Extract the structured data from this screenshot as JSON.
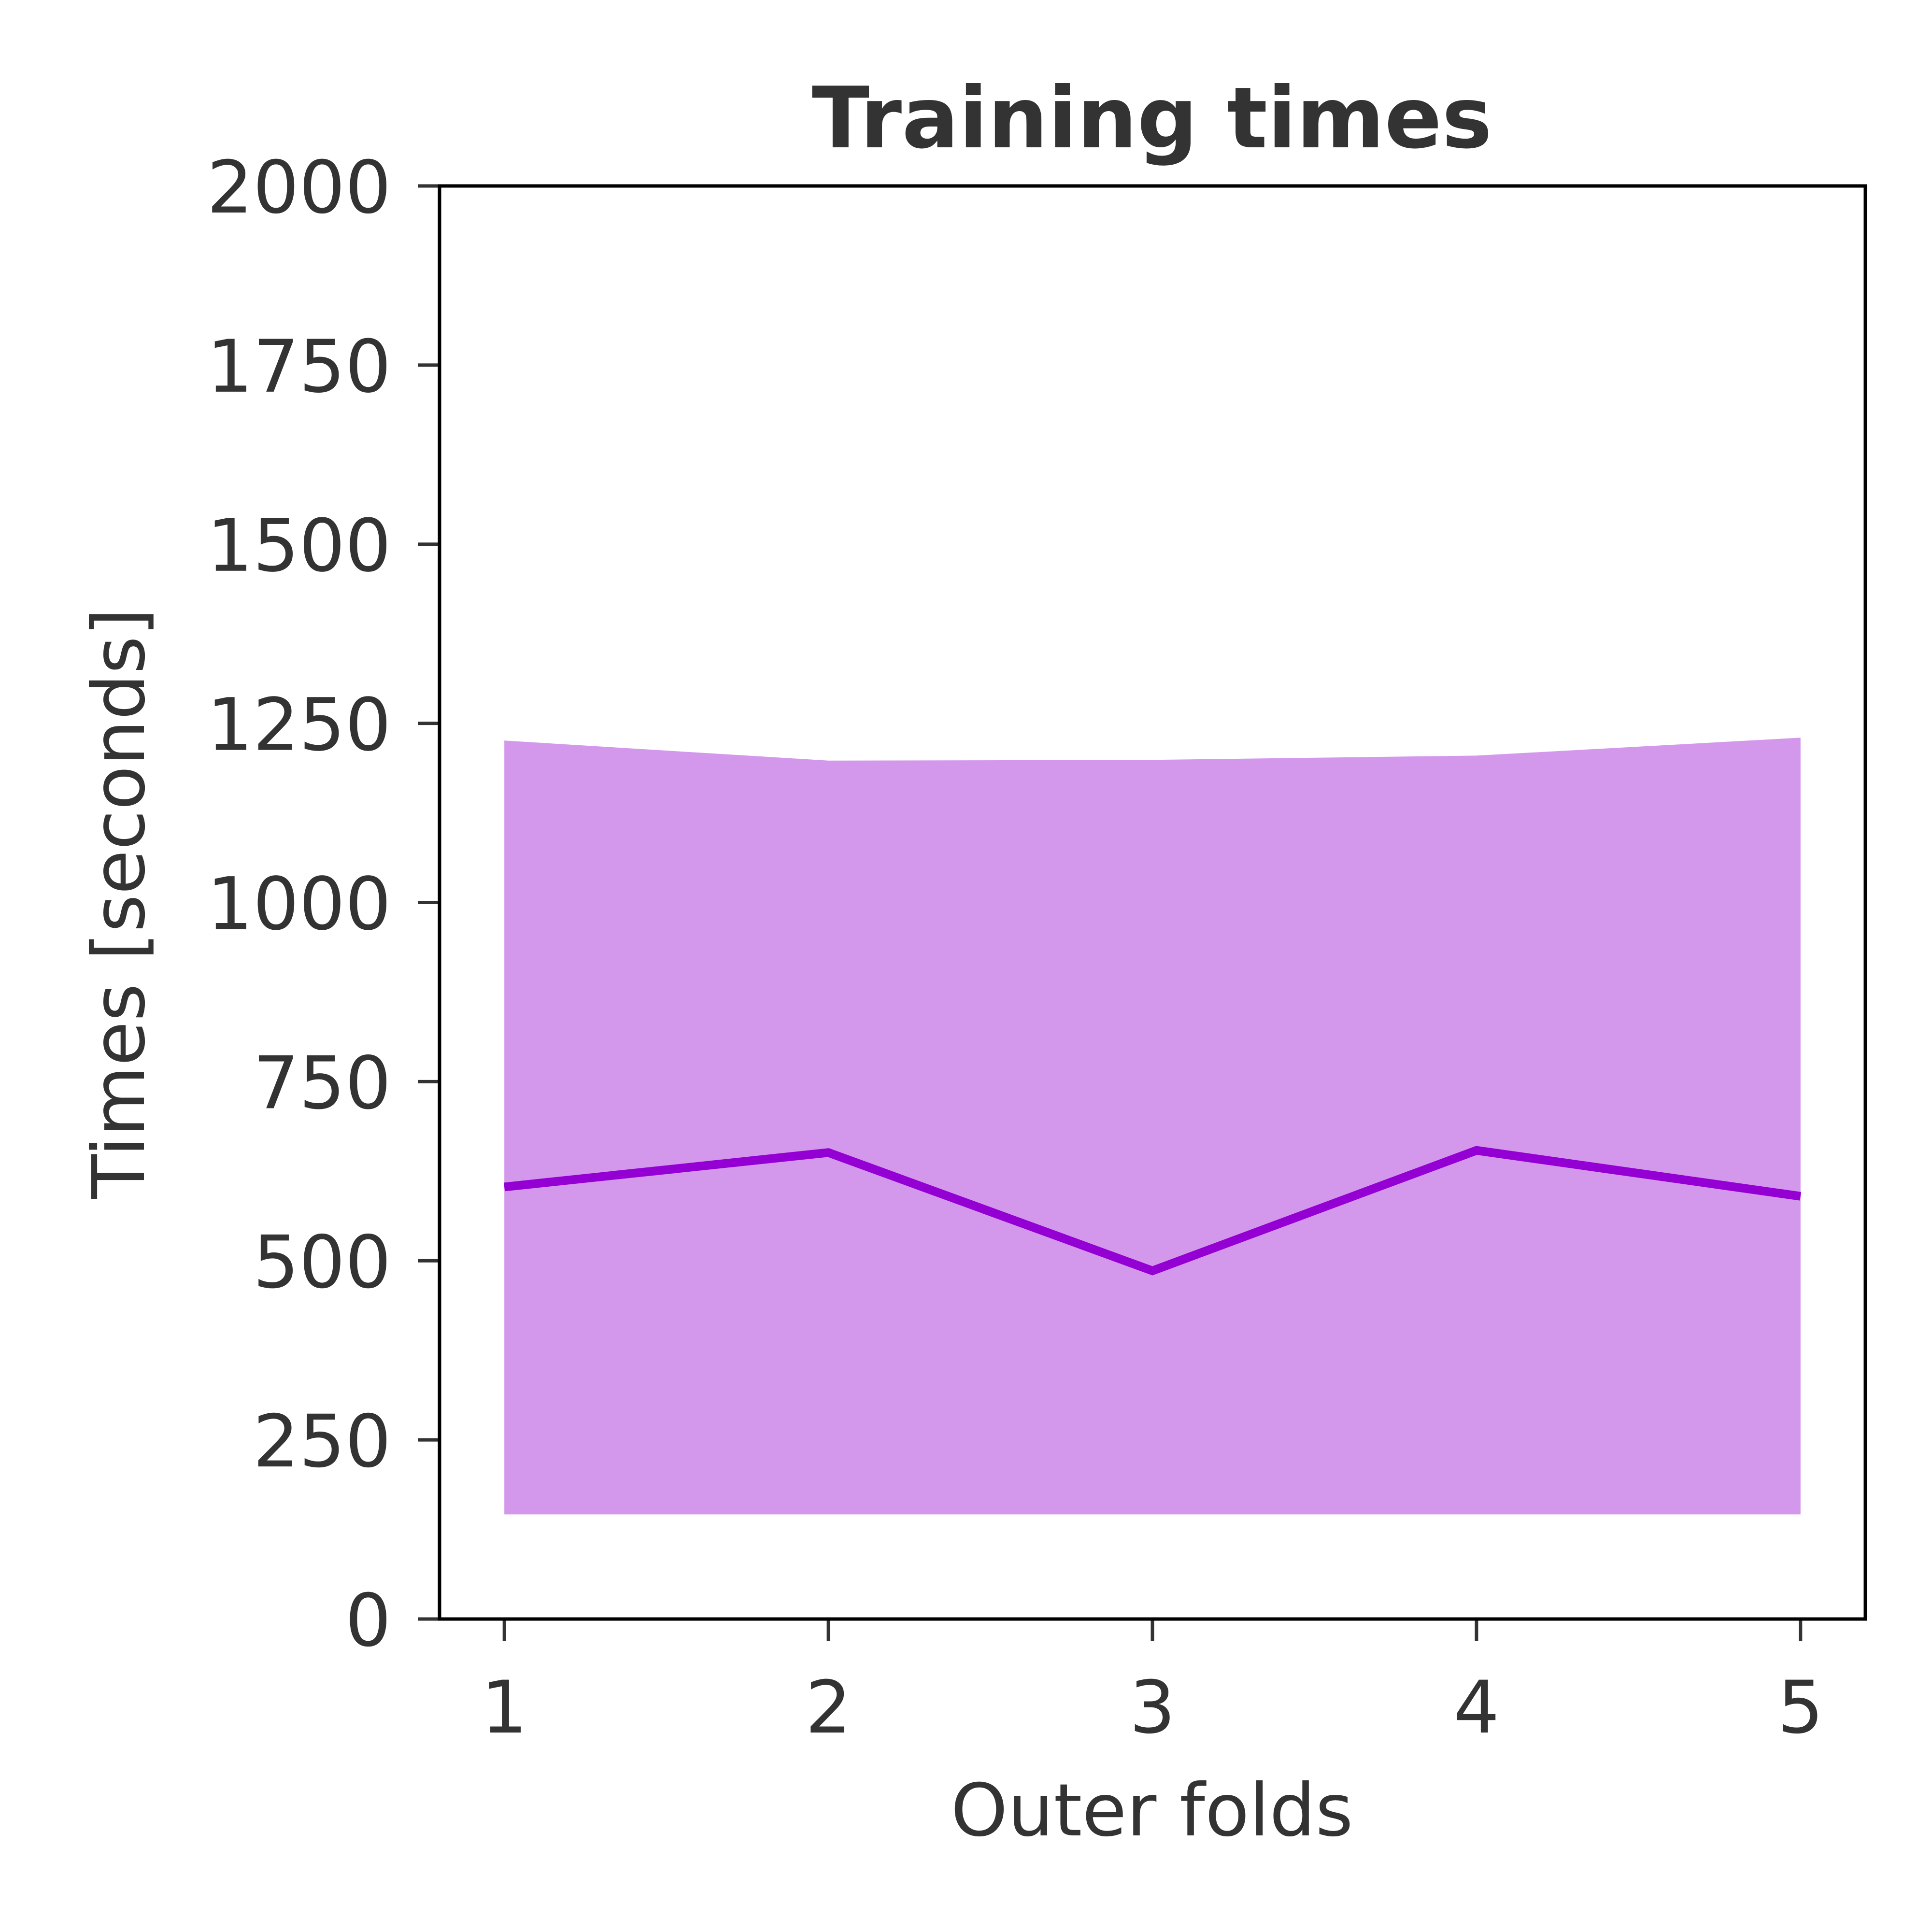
{
  "chart_data": {
    "type": "line",
    "title": "Training times",
    "xlabel": "Outer folds",
    "ylabel": "Times [seconds]",
    "x": [
      1,
      2,
      3,
      4,
      5
    ],
    "xlim": [
      0.8,
      5.2
    ],
    "ylim": [
      0,
      2000
    ],
    "xticks": [
      1,
      2,
      3,
      4,
      5
    ],
    "xtick_labels": [
      "1",
      "2",
      "3",
      "4",
      "5"
    ],
    "yticks": [
      0,
      250,
      500,
      750,
      1000,
      1250,
      1500,
      1750,
      2000
    ],
    "ytick_labels": [
      "0",
      "250",
      "500",
      "750",
      "1000",
      "1250",
      "1500",
      "1750",
      "2000"
    ],
    "grid": false,
    "legend": "none",
    "series": [
      {
        "values": [
          603,
          651,
          486,
          654,
          590
        ],
        "color": "#9400d3",
        "band_upper": [
          1226,
          1198,
          1199,
          1205,
          1230
        ],
        "band_lower": [
          146,
          146,
          146,
          146,
          146
        ],
        "band_color": "#d398eb"
      }
    ]
  }
}
